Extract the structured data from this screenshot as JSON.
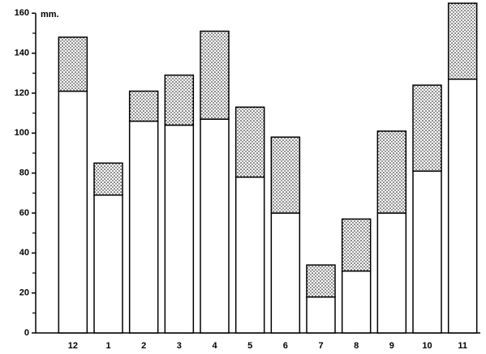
{
  "chart_data": {
    "type": "stacked_bar",
    "ylabel": "mm.",
    "categories": [
      "12",
      "1",
      "2",
      "3",
      "4",
      "5",
      "6",
      "7",
      "8",
      "9",
      "10",
      "11"
    ],
    "series": [
      {
        "color": "#ffffff",
        "values": [
          121,
          69,
          106,
          104,
          107,
          78,
          60,
          18,
          31,
          60,
          81,
          127
        ]
      },
      {
        "color": "#000000",
        "pattern": "dots",
        "values": [
          27,
          16,
          15,
          25,
          44,
          35,
          38,
          16,
          26,
          41,
          43,
          38
        ]
      }
    ],
    "ylim": [
      0,
      165
    ],
    "yticks": [
      0,
      20,
      40,
      60,
      80,
      100,
      120,
      140,
      160
    ],
    "minor_yticks": [
      10,
      30,
      50,
      70,
      90,
      110,
      130,
      150
    ]
  }
}
